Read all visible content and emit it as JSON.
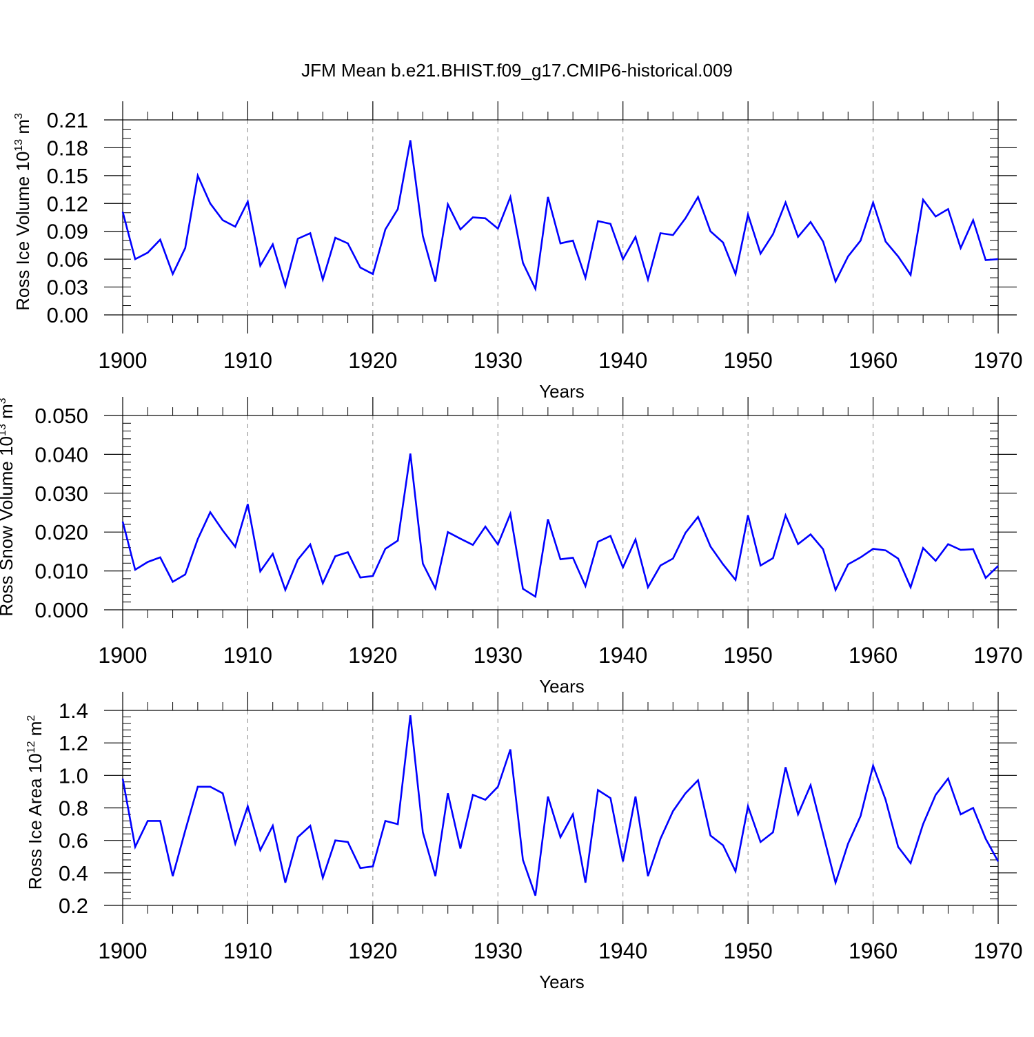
{
  "title": "JFM Mean b.e21.BHIST.f09_g17.CMIP6-historical.009",
  "colors": {
    "line": "#0000ff",
    "axis": "#000000",
    "grid": "#888888"
  },
  "chart_data": [
    {
      "type": "line",
      "xlabel": "Years",
      "ylabel_base": "Ross Ice Volume 10",
      "ylabel_exp": "13",
      "ylabel_unit": "m",
      "ylabel_unit_exp": "3",
      "xlim": [
        1900,
        1970
      ],
      "ylim": [
        0.0,
        0.21
      ],
      "x_ticks": [
        "1900",
        "1910",
        "1920",
        "1930",
        "1940",
        "1950",
        "1960",
        "1970"
      ],
      "y_ticks": [
        "0.00",
        "0.03",
        "0.06",
        "0.09",
        "0.12",
        "0.15",
        "0.18",
        "0.21"
      ],
      "grid": "vertical dashed at x ticks",
      "x_start": 1900,
      "values": [
        0.111,
        0.06,
        0.067,
        0.081,
        0.044,
        0.072,
        0.15,
        0.12,
        0.102,
        0.095,
        0.122,
        0.053,
        0.076,
        0.031,
        0.082,
        0.088,
        0.038,
        0.083,
        0.077,
        0.051,
        0.044,
        0.092,
        0.114,
        0.188,
        0.085,
        0.036,
        0.119,
        0.092,
        0.105,
        0.104,
        0.093,
        0.127,
        0.056,
        0.028,
        0.127,
        0.077,
        0.08,
        0.04,
        0.101,
        0.098,
        0.06,
        0.084,
        0.038,
        0.088,
        0.086,
        0.104,
        0.127,
        0.09,
        0.078,
        0.044,
        0.108,
        0.066,
        0.087,
        0.121,
        0.084,
        0.1,
        0.079,
        0.036,
        0.063,
        0.08,
        0.121,
        0.079,
        0.063,
        0.043,
        0.124,
        0.106,
        0.114,
        0.072,
        0.102,
        0.059,
        0.06
      ]
    },
    {
      "type": "line",
      "xlabel": "Years",
      "ylabel_base": "Ross Snow Volume 10",
      "ylabel_exp": "13",
      "ylabel_unit": "m",
      "ylabel_unit_exp": "3",
      "xlim": [
        1900,
        1970
      ],
      "ylim": [
        0.0,
        0.05
      ],
      "x_ticks": [
        "1900",
        "1910",
        "1920",
        "1930",
        "1940",
        "1950",
        "1960",
        "1970"
      ],
      "y_ticks": [
        "0.000",
        "0.010",
        "0.020",
        "0.030",
        "0.040",
        "0.050"
      ],
      "grid": "vertical dashed at x ticks",
      "x_start": 1900,
      "values": [
        0.0227,
        0.0103,
        0.0123,
        0.0135,
        0.0072,
        0.0091,
        0.0182,
        0.0251,
        0.0204,
        0.0162,
        0.0272,
        0.0099,
        0.0144,
        0.0051,
        0.0129,
        0.0168,
        0.0068,
        0.0138,
        0.0148,
        0.0083,
        0.0087,
        0.0157,
        0.0178,
        0.0402,
        0.0119,
        0.0055,
        0.02,
        0.0183,
        0.0167,
        0.0214,
        0.0168,
        0.0247,
        0.0054,
        0.0034,
        0.0233,
        0.013,
        0.0134,
        0.0061,
        0.0175,
        0.019,
        0.0109,
        0.0181,
        0.0058,
        0.0114,
        0.0132,
        0.0198,
        0.0239,
        0.0163,
        0.0117,
        0.0077,
        0.0243,
        0.0114,
        0.0133,
        0.0243,
        0.0169,
        0.0194,
        0.0156,
        0.0051,
        0.0117,
        0.0135,
        0.0157,
        0.0153,
        0.0132,
        0.0058,
        0.0159,
        0.0126,
        0.0169,
        0.0154,
        0.0156,
        0.0082,
        0.0113
      ]
    },
    {
      "type": "line",
      "xlabel": "Years",
      "ylabel_base": "Ross Ice Area 10",
      "ylabel_exp": "12",
      "ylabel_unit": "m",
      "ylabel_unit_exp": "2",
      "xlim": [
        1900,
        1970
      ],
      "ylim": [
        0.2,
        1.4
      ],
      "x_ticks": [
        "1900",
        "1910",
        "1920",
        "1930",
        "1940",
        "1950",
        "1960",
        "1970"
      ],
      "y_ticks": [
        "0.2",
        "0.4",
        "0.6",
        "0.8",
        "1.0",
        "1.2",
        "1.4"
      ],
      "grid": "vertical dashed at x ticks",
      "x_start": 1900,
      "values": [
        0.98,
        0.56,
        0.72,
        0.72,
        0.38,
        0.66,
        0.93,
        0.93,
        0.89,
        0.58,
        0.81,
        0.54,
        0.69,
        0.34,
        0.62,
        0.69,
        0.37,
        0.6,
        0.59,
        0.43,
        0.44,
        0.72,
        0.7,
        1.37,
        0.65,
        0.38,
        0.89,
        0.55,
        0.88,
        0.85,
        0.93,
        1.16,
        0.48,
        0.26,
        0.87,
        0.62,
        0.76,
        0.34,
        0.91,
        0.86,
        0.47,
        0.87,
        0.38,
        0.61,
        0.78,
        0.89,
        0.97,
        0.63,
        0.57,
        0.41,
        0.81,
        0.59,
        0.65,
        1.05,
        0.76,
        0.94,
        0.64,
        0.34,
        0.58,
        0.75,
        1.06,
        0.85,
        0.56,
        0.46,
        0.7,
        0.88,
        0.98,
        0.76,
        0.8,
        0.61,
        0.47
      ]
    }
  ]
}
